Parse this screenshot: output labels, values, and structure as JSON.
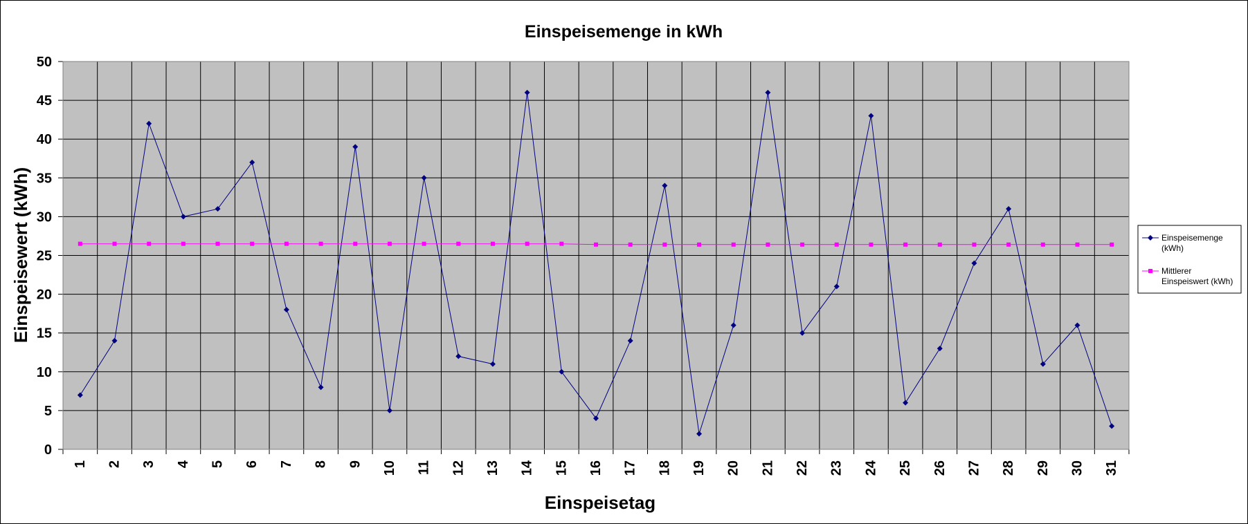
{
  "chart_data": {
    "type": "line",
    "title": "Einspeisemenge in kWh",
    "xlabel": "Einspeisetag",
    "ylabel": "Einspeisewert  (kWh)",
    "categories": [
      "1",
      "2",
      "3",
      "4",
      "5",
      "6",
      "7",
      "8",
      "9",
      "10",
      "11",
      "12",
      "13",
      "14",
      "15",
      "16",
      "17",
      "18",
      "19",
      "20",
      "21",
      "22",
      "23",
      "24",
      "25",
      "26",
      "27",
      "28",
      "29",
      "30",
      "31"
    ],
    "ylim": [
      0,
      50
    ],
    "yticks": [
      0,
      5,
      10,
      15,
      20,
      25,
      30,
      35,
      40,
      45,
      50
    ],
    "grid": true,
    "legend_position": "right",
    "plot_background": "#c0c0c0",
    "series": [
      {
        "name": "Einspeisemenge (kWh)",
        "legend_lines": [
          "Einspeisemenge",
          "(kWh)"
        ],
        "color": "#000080",
        "marker": "diamond",
        "values": [
          7,
          14,
          42,
          30,
          31,
          37,
          18,
          8,
          39,
          5,
          35,
          12,
          11,
          46,
          10,
          4,
          14,
          34,
          2,
          16,
          46,
          15,
          21,
          43,
          6,
          13,
          24,
          31,
          11,
          16,
          3
        ]
      },
      {
        "name": "Mittlerer Einspeiswert (kWh)",
        "legend_lines": [
          "Mittlerer",
          "Einspeiswert (kWh)"
        ],
        "color": "#ff00ff",
        "marker": "square",
        "values": [
          26.5,
          26.5,
          26.5,
          26.5,
          26.5,
          26.5,
          26.5,
          26.5,
          26.5,
          26.5,
          26.5,
          26.5,
          26.5,
          26.5,
          26.5,
          26.4,
          26.4,
          26.4,
          26.4,
          26.4,
          26.4,
          26.4,
          26.4,
          26.4,
          26.4,
          26.4,
          26.4,
          26.4,
          26.4,
          26.4,
          26.4
        ]
      }
    ]
  }
}
